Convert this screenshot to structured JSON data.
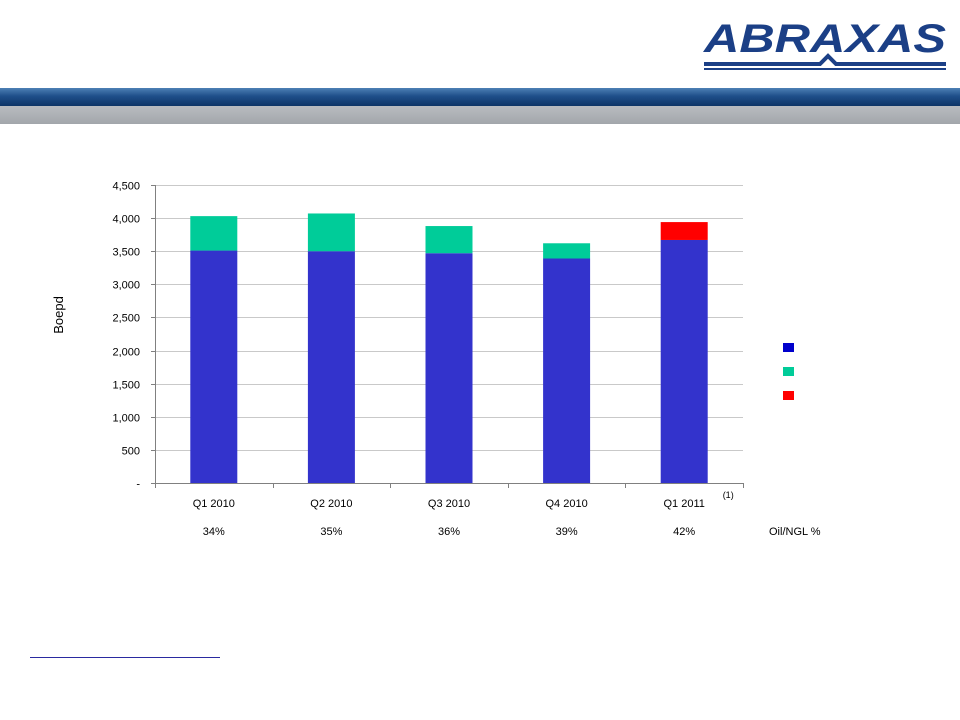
{
  "brand": {
    "name": "ABRAXAS",
    "color": "#1b3f86"
  },
  "chart_data": {
    "type": "bar",
    "stacked": true,
    "ylabel": "Boepd",
    "ylim": [
      0,
      4500
    ],
    "yticks": [
      0,
      500,
      1000,
      1500,
      2000,
      2500,
      3000,
      3500,
      4000,
      4500
    ],
    "ytick_labels": [
      "-",
      "500",
      "1,000",
      "1,500",
      "2,000",
      "2,500",
      "3,000",
      "3,500",
      "4,000",
      "4,500"
    ],
    "grid": true,
    "categories": [
      "Q1 2010",
      "Q2 2010",
      "Q3 2010",
      "Q4 2010",
      "Q1 2011"
    ],
    "category_note": {
      "index": 4,
      "text": "(1)"
    },
    "series": [
      {
        "color": "#3333cc",
        "values": [
          3510,
          3500,
          3470,
          3390,
          3670
        ]
      },
      {
        "color": "#00cc99",
        "values": [
          520,
          570,
          410,
          230,
          0
        ]
      },
      {
        "color": "#ff0000",
        "values": [
          0,
          0,
          0,
          0,
          270
        ]
      }
    ],
    "legend": {
      "placement": "right",
      "swatches": [
        "#0000cc",
        "#00cc99",
        "#ff0000"
      ]
    },
    "oil_ngl_pct": {
      "label": "Oil/NGL %",
      "values": [
        "34%",
        "35%",
        "36%",
        "39%",
        "42%"
      ]
    }
  }
}
